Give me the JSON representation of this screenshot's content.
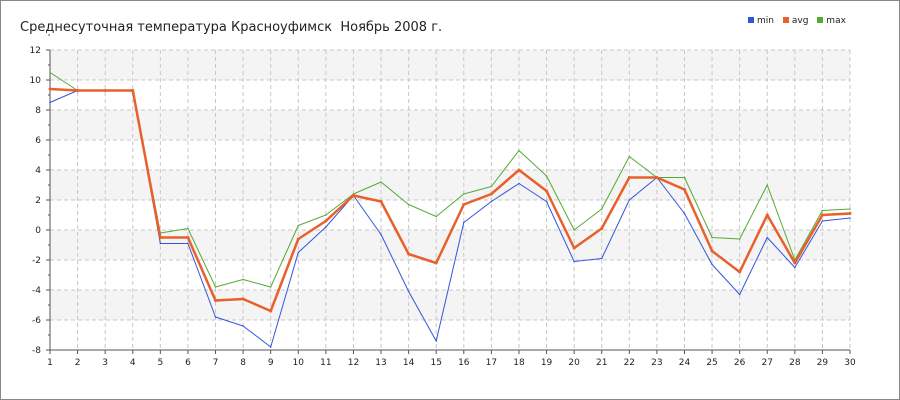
{
  "chart_data": {
    "type": "line",
    "title": "Среднесуточная температура Красноуфимск  Ноябрь 2008 г.",
    "x": [
      1,
      2,
      3,
      4,
      5,
      6,
      7,
      8,
      9,
      10,
      11,
      12,
      13,
      14,
      15,
      16,
      17,
      18,
      19,
      20,
      21,
      22,
      23,
      24,
      25,
      26,
      27,
      28,
      29,
      30
    ],
    "ylim": [
      -8,
      12
    ],
    "yticks": [
      -8,
      -6,
      -4,
      -2,
      0,
      2,
      4,
      6,
      8,
      10,
      12
    ],
    "grid": true,
    "legend_position": "top-right",
    "series": [
      {
        "name": "min",
        "color": "#3355dd",
        "values": [
          8.5,
          9.3,
          9.3,
          9.3,
          -0.9,
          -0.9,
          -5.8,
          -6.4,
          -7.8,
          -1.5,
          0.2,
          2.3,
          -0.3,
          -4.1,
          -7.4,
          0.5,
          1.9,
          3.1,
          1.9,
          -2.1,
          -1.9,
          2.0,
          3.5,
          1.1,
          -2.3,
          -4.3,
          -0.5,
          -2.5,
          0.6,
          0.8
        ]
      },
      {
        "name": "avg",
        "color": "#e8602c",
        "values": [
          9.4,
          9.3,
          9.3,
          9.3,
          -0.5,
          -0.5,
          -4.7,
          -4.6,
          -5.4,
          -0.6,
          0.6,
          2.3,
          1.9,
          -1.6,
          -2.2,
          1.7,
          2.4,
          4.0,
          2.6,
          -1.2,
          0.1,
          3.5,
          3.5,
          2.7,
          -1.4,
          -2.8,
          1.0,
          -2.2,
          1.0,
          1.1
        ]
      },
      {
        "name": "max",
        "color": "#55aa33",
        "values": [
          10.5,
          9.3,
          9.3,
          9.3,
          -0.2,
          0.1,
          -3.8,
          -3.3,
          -3.8,
          0.3,
          1.0,
          2.4,
          3.2,
          1.7,
          0.9,
          2.4,
          2.9,
          5.3,
          3.6,
          0.0,
          1.4,
          4.9,
          3.5,
          3.5,
          -0.5,
          -0.6,
          3.0,
          -2.0,
          1.3,
          1.4
        ]
      }
    ]
  }
}
